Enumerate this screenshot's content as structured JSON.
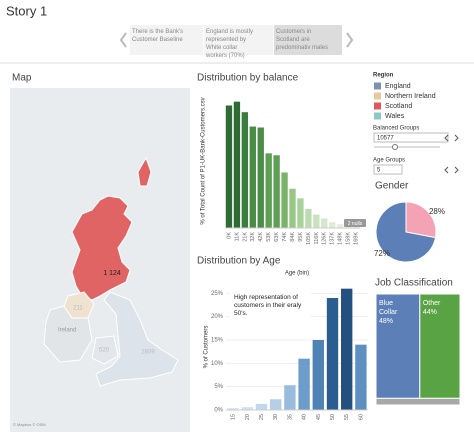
{
  "story_title": "Story 1",
  "nav": [
    "There is the Bank's Customer Baseline",
    "England is mostly represented by White collar workers (70%)",
    "Customers in Scotland are predominativ males"
  ],
  "legend": {
    "title": "Region",
    "items": [
      {
        "name": "England",
        "color": "#7b93b3"
      },
      {
        "name": "Northern Ireland",
        "color": "#e9c89b"
      },
      {
        "name": "Scotland",
        "color": "#e15759"
      },
      {
        "name": "Wales",
        "color": "#8cc9c3"
      }
    ]
  },
  "filters": [
    {
      "label": "Balanced Groups",
      "value": "10577"
    },
    {
      "label": "Age Groups",
      "value": "5"
    }
  ],
  "chart_data": [
    {
      "type": "map",
      "title": "Map",
      "categories": [
        "Scotland",
        "Northern Ireland",
        "England",
        "Wales"
      ],
      "values": [
        1124,
        211,
        2809,
        520
      ],
      "value_labels": [
        "1 124",
        "211",
        "2809",
        "520"
      ],
      "colors": [
        "#e06464",
        "#efe2cf",
        "#dde3ea",
        "#e3e7ec"
      ],
      "annotations": [
        "Ireland",
        "© Mapbox © OSM"
      ]
    },
    {
      "type": "bar",
      "title": "Distribution by balance",
      "y_label": "% of Total Count of P1-UK-Bank-Customers.csv",
      "categories": [
        "0K",
        "11K",
        "21K",
        "32K",
        "42K",
        "53K",
        "63K",
        "74K",
        "84K",
        "95K",
        "105K",
        "116K",
        "126K",
        "137K",
        "148K",
        "158K",
        "169K"
      ],
      "values": [
        12.8,
        13.2,
        12.1,
        10.6,
        10.5,
        7.8,
        7.6,
        5.8,
        4.1,
        3.1,
        2.0,
        1.4,
        1.0,
        0.6,
        0.4,
        0.3,
        0.2
      ],
      "colors": [
        "#2f6b34",
        "#2f6b34",
        "#3a7d3e",
        "#4a8c46",
        "#4a8c46",
        "#5f9f55",
        "#5f9f55",
        "#7ab46a",
        "#97c785",
        "#a9d29a",
        "#bcdcb0",
        "#c9e3bf",
        "#d4e8cb",
        "#dcedd5",
        "#e2f0dc",
        "#e6f2e1",
        "#eaf4e6"
      ],
      "ylim": [
        0,
        14
      ],
      "badge": "2 nulls"
    },
    {
      "type": "bar",
      "title": "Distribution by Age",
      "x_label": "Age (bin)",
      "y_label": "% of Customers",
      "categories": [
        "15",
        "20",
        "25",
        "30",
        "35",
        "40",
        "45",
        "50",
        "55",
        "60"
      ],
      "values": [
        0.4,
        0.6,
        1.3,
        2.3,
        5.3,
        11,
        15,
        24,
        26,
        14
      ],
      "colors": [
        "#d3e3f1",
        "#cddff0",
        "#c3d8ec",
        "#b5cfe8",
        "#98bbde",
        "#6c9cc9",
        "#4f82b5",
        "#2c5d90",
        "#24507f",
        "#5d8fc0"
      ],
      "ylim": [
        0,
        27
      ],
      "yticks": [
        {
          "value": 0,
          "label": "0%"
        },
        {
          "value": 5,
          "label": "5%"
        },
        {
          "value": 10,
          "label": "10%"
        },
        {
          "value": 15,
          "label": "15%"
        },
        {
          "value": 20,
          "label": "20%"
        },
        {
          "value": 25,
          "label": "25%"
        }
      ],
      "annotation": "High representation of customers in their eraly 50's."
    },
    {
      "type": "pie",
      "title": "Gender",
      "values": [
        28,
        72
      ],
      "value_labels": [
        "28%",
        "72%"
      ],
      "colors": [
        "#f4a3b4",
        "#5b7fb6"
      ]
    },
    {
      "type": "treemap",
      "title": "Job Classification",
      "categories": [
        "Blue Collar",
        "Other",
        null
      ],
      "values": [
        48,
        44,
        8
      ],
      "value_labels": [
        "48%",
        "44%",
        null
      ],
      "colors": [
        "#5b7fb6",
        "#5aa344",
        "#a8a8a8"
      ]
    }
  ]
}
